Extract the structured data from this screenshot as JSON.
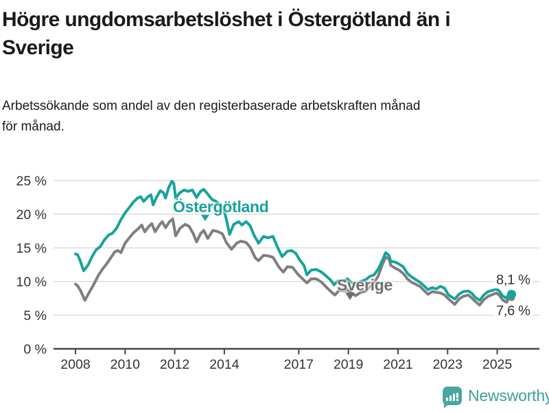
{
  "header": {
    "title_lines": [
      "Högre ungdomsarbetslöshet i Östergötland än i",
      "Sverige"
    ],
    "subtitle_lines": [
      "Arbetssökande som andel av den registerbaserade arbetskraften månad",
      "för månad."
    ]
  },
  "colors": {
    "ostergotland": "#17a39b",
    "sverige": "#7e7e7e",
    "sverige_label": "#6f6f6f",
    "axis_text": "#333333",
    "gridline": "#d4d4d4",
    "axis_line": "#444444",
    "logo_bubble": "#4aa6a0",
    "logo_text": "#3f9e99"
  },
  "chart_data": {
    "type": "line",
    "unit": "%",
    "title": "Högre ungdomsarbetslöshet i Östergötland än i Sverige",
    "subtitle": "Arbetssökande som andel av den registerbaserade arbetskraften månad för månad.",
    "x_axis": {
      "tick_years": [
        2008,
        2010,
        2012,
        2014,
        2017,
        2019,
        2021,
        2023,
        2025
      ],
      "tick_labels": [
        "2008",
        "2010",
        "2012",
        "2014",
        "2017",
        "2019",
        "2021",
        "2023",
        "2025"
      ],
      "range": [
        2008.0,
        2025.58
      ]
    },
    "y_axis": {
      "ticks": [
        0,
        5,
        10,
        15,
        20,
        25
      ],
      "tick_labels": [
        "0 %",
        "5 %",
        "10 %",
        "15 %",
        "20 %",
        "25 %"
      ],
      "range": [
        0,
        25
      ],
      "gridlines": true
    },
    "legend_position": "inline-labels",
    "series": [
      {
        "name": "Sverige",
        "color": "#7e7e7e",
        "end_value": 7.6,
        "end_label": "7,6 %",
        "points": [
          [
            2008.0,
            9.6
          ],
          [
            2008.08,
            9.4
          ],
          [
            2008.21,
            8.6
          ],
          [
            2008.38,
            7.2
          ],
          [
            2008.54,
            8.3
          ],
          [
            2008.71,
            9.4
          ],
          [
            2008.92,
            10.9
          ],
          [
            2009.08,
            11.8
          ],
          [
            2009.25,
            12.6
          ],
          [
            2009.42,
            13.5
          ],
          [
            2009.58,
            14.4
          ],
          [
            2009.71,
            14.6
          ],
          [
            2009.83,
            14.3
          ],
          [
            2010.0,
            15.7
          ],
          [
            2010.17,
            16.5
          ],
          [
            2010.33,
            17.2
          ],
          [
            2010.54,
            17.9
          ],
          [
            2010.67,
            18.4
          ],
          [
            2010.79,
            17.4
          ],
          [
            2010.96,
            18.2
          ],
          [
            2011.08,
            18.6
          ],
          [
            2011.21,
            17.4
          ],
          [
            2011.38,
            18.4
          ],
          [
            2011.5,
            18.9
          ],
          [
            2011.63,
            18.0
          ],
          [
            2011.79,
            18.9
          ],
          [
            2011.92,
            19.3
          ],
          [
            2012.04,
            16.8
          ],
          [
            2012.21,
            17.9
          ],
          [
            2012.42,
            18.5
          ],
          [
            2012.58,
            18.2
          ],
          [
            2012.75,
            17.1
          ],
          [
            2012.88,
            15.9
          ],
          [
            2013.04,
            17.1
          ],
          [
            2013.17,
            17.6
          ],
          [
            2013.33,
            16.4
          ],
          [
            2013.54,
            17.6
          ],
          [
            2013.75,
            17.4
          ],
          [
            2013.92,
            17.1
          ],
          [
            2014.08,
            15.8
          ],
          [
            2014.29,
            14.8
          ],
          [
            2014.5,
            15.7
          ],
          [
            2014.67,
            16.0
          ],
          [
            2014.88,
            15.8
          ],
          [
            2015.04,
            15.1
          ],
          [
            2015.25,
            13.5
          ],
          [
            2015.38,
            13.1
          ],
          [
            2015.58,
            13.9
          ],
          [
            2015.79,
            13.8
          ],
          [
            2015.96,
            13.6
          ],
          [
            2016.21,
            12.1
          ],
          [
            2016.38,
            11.4
          ],
          [
            2016.54,
            12.2
          ],
          [
            2016.75,
            12.1
          ],
          [
            2016.96,
            11.1
          ],
          [
            2017.21,
            10.2
          ],
          [
            2017.33,
            9.8
          ],
          [
            2017.5,
            10.4
          ],
          [
            2017.71,
            10.4
          ],
          [
            2017.92,
            9.9
          ],
          [
            2018.13,
            9.1
          ],
          [
            2018.33,
            8.4
          ],
          [
            2018.46,
            8.0
          ],
          [
            2018.63,
            8.7
          ],
          [
            2018.83,
            8.6
          ],
          [
            2018.96,
            8.8
          ],
          [
            2019.13,
            8.3
          ],
          [
            2019.29,
            7.9
          ],
          [
            2019.5,
            8.4
          ],
          [
            2019.71,
            8.6
          ],
          [
            2019.88,
            9.3
          ],
          [
            2020.04,
            9.8
          ],
          [
            2020.21,
            10.9
          ],
          [
            2020.38,
            12.6
          ],
          [
            2020.5,
            13.6
          ],
          [
            2020.63,
            13.4
          ],
          [
            2020.71,
            12.4
          ],
          [
            2020.88,
            12.0
          ],
          [
            2021.04,
            11.7
          ],
          [
            2021.21,
            11.2
          ],
          [
            2021.38,
            10.4
          ],
          [
            2021.54,
            9.9
          ],
          [
            2021.71,
            9.6
          ],
          [
            2021.88,
            9.3
          ],
          [
            2022.04,
            8.7
          ],
          [
            2022.21,
            8.1
          ],
          [
            2022.38,
            8.5
          ],
          [
            2022.54,
            8.4
          ],
          [
            2022.71,
            8.3
          ],
          [
            2022.88,
            8.0
          ],
          [
            2023.04,
            7.4
          ],
          [
            2023.29,
            6.6
          ],
          [
            2023.46,
            7.4
          ],
          [
            2023.63,
            7.8
          ],
          [
            2023.83,
            8.0
          ],
          [
            2023.96,
            7.6
          ],
          [
            2024.13,
            7.0
          ],
          [
            2024.29,
            6.5
          ],
          [
            2024.46,
            7.3
          ],
          [
            2024.63,
            7.8
          ],
          [
            2024.83,
            8.1
          ],
          [
            2024.96,
            8.3
          ],
          [
            2025.08,
            8.0
          ],
          [
            2025.21,
            7.3
          ],
          [
            2025.38,
            6.9
          ],
          [
            2025.5,
            7.8
          ],
          [
            2025.58,
            7.6
          ]
        ]
      },
      {
        "name": "Östergötland",
        "color": "#17a39b",
        "end_value": 8.1,
        "end_label": "8,1 %",
        "points": [
          [
            2008.0,
            14.1
          ],
          [
            2008.08,
            14.0
          ],
          [
            2008.17,
            13.3
          ],
          [
            2008.33,
            11.6
          ],
          [
            2008.5,
            12.4
          ],
          [
            2008.67,
            13.7
          ],
          [
            2008.83,
            14.7
          ],
          [
            2009.0,
            15.2
          ],
          [
            2009.17,
            16.2
          ],
          [
            2009.33,
            16.9
          ],
          [
            2009.5,
            17.2
          ],
          [
            2009.67,
            18.0
          ],
          [
            2009.83,
            19.2
          ],
          [
            2010.0,
            20.2
          ],
          [
            2010.17,
            21.0
          ],
          [
            2010.33,
            21.8
          ],
          [
            2010.5,
            22.4
          ],
          [
            2010.63,
            22.6
          ],
          [
            2010.75,
            21.9
          ],
          [
            2010.92,
            22.6
          ],
          [
            2011.04,
            22.9
          ],
          [
            2011.13,
            21.4
          ],
          [
            2011.25,
            22.4
          ],
          [
            2011.42,
            23.5
          ],
          [
            2011.54,
            23.2
          ],
          [
            2011.63,
            22.4
          ],
          [
            2011.75,
            23.9
          ],
          [
            2011.88,
            24.9
          ],
          [
            2011.96,
            24.6
          ],
          [
            2012.04,
            22.4
          ],
          [
            2012.21,
            23.2
          ],
          [
            2012.38,
            23.6
          ],
          [
            2012.54,
            23.4
          ],
          [
            2012.71,
            23.6
          ],
          [
            2012.88,
            22.5
          ],
          [
            2013.04,
            23.4
          ],
          [
            2013.17,
            23.7
          ],
          [
            2013.33,
            23.0
          ],
          [
            2013.5,
            22.2
          ],
          [
            2013.67,
            21.9
          ],
          [
            2013.83,
            21.4
          ],
          [
            2013.96,
            20.9
          ],
          [
            2014.08,
            19.3
          ],
          [
            2014.21,
            17.0
          ],
          [
            2014.38,
            18.5
          ],
          [
            2014.58,
            18.9
          ],
          [
            2014.71,
            18.4
          ],
          [
            2014.88,
            18.9
          ],
          [
            2015.04,
            18.3
          ],
          [
            2015.21,
            16.8
          ],
          [
            2015.38,
            15.7
          ],
          [
            2015.58,
            16.7
          ],
          [
            2015.75,
            16.5
          ],
          [
            2015.96,
            16.7
          ],
          [
            2016.17,
            14.9
          ],
          [
            2016.33,
            13.7
          ],
          [
            2016.54,
            14.5
          ],
          [
            2016.71,
            14.6
          ],
          [
            2016.88,
            14.2
          ],
          [
            2017.04,
            13.2
          ],
          [
            2017.21,
            12.4
          ],
          [
            2017.33,
            11.0
          ],
          [
            2017.5,
            11.7
          ],
          [
            2017.71,
            11.8
          ],
          [
            2017.92,
            11.4
          ],
          [
            2018.08,
            10.9
          ],
          [
            2018.29,
            10.2
          ],
          [
            2018.42,
            9.5
          ],
          [
            2018.58,
            10.1
          ],
          [
            2018.79,
            10.0
          ],
          [
            2018.96,
            10.4
          ],
          [
            2019.13,
            9.8
          ],
          [
            2019.29,
            9.6
          ],
          [
            2019.5,
            10.0
          ],
          [
            2019.71,
            10.3
          ],
          [
            2019.88,
            10.8
          ],
          [
            2020.04,
            11.0
          ],
          [
            2020.21,
            11.9
          ],
          [
            2020.38,
            13.2
          ],
          [
            2020.5,
            14.3
          ],
          [
            2020.63,
            13.9
          ],
          [
            2020.71,
            13.0
          ],
          [
            2020.88,
            12.9
          ],
          [
            2021.04,
            12.6
          ],
          [
            2021.21,
            12.2
          ],
          [
            2021.38,
            11.2
          ],
          [
            2021.54,
            10.7
          ],
          [
            2021.71,
            10.3
          ],
          [
            2021.88,
            9.9
          ],
          [
            2022.04,
            9.4
          ],
          [
            2022.21,
            8.8
          ],
          [
            2022.38,
            9.1
          ],
          [
            2022.54,
            8.9
          ],
          [
            2022.71,
            9.3
          ],
          [
            2022.88,
            9.0
          ],
          [
            2023.04,
            8.0
          ],
          [
            2023.29,
            7.4
          ],
          [
            2023.46,
            8.1
          ],
          [
            2023.63,
            8.5
          ],
          [
            2023.83,
            8.6
          ],
          [
            2023.96,
            8.3
          ],
          [
            2024.13,
            7.6
          ],
          [
            2024.29,
            7.2
          ],
          [
            2024.46,
            8.0
          ],
          [
            2024.63,
            8.5
          ],
          [
            2024.83,
            8.7
          ],
          [
            2024.96,
            8.9
          ],
          [
            2025.08,
            8.6
          ],
          [
            2025.21,
            7.9
          ],
          [
            2025.38,
            7.5
          ],
          [
            2025.5,
            8.5
          ],
          [
            2025.58,
            8.1
          ]
        ]
      }
    ],
    "annotations": {
      "ostergotland_label": "Östergötland",
      "sverige_label": "Sverige",
      "end_label_top": "8,1 %",
      "end_label_bottom": "7,6 %"
    }
  },
  "footer": {
    "brand": "Newsworthy"
  }
}
